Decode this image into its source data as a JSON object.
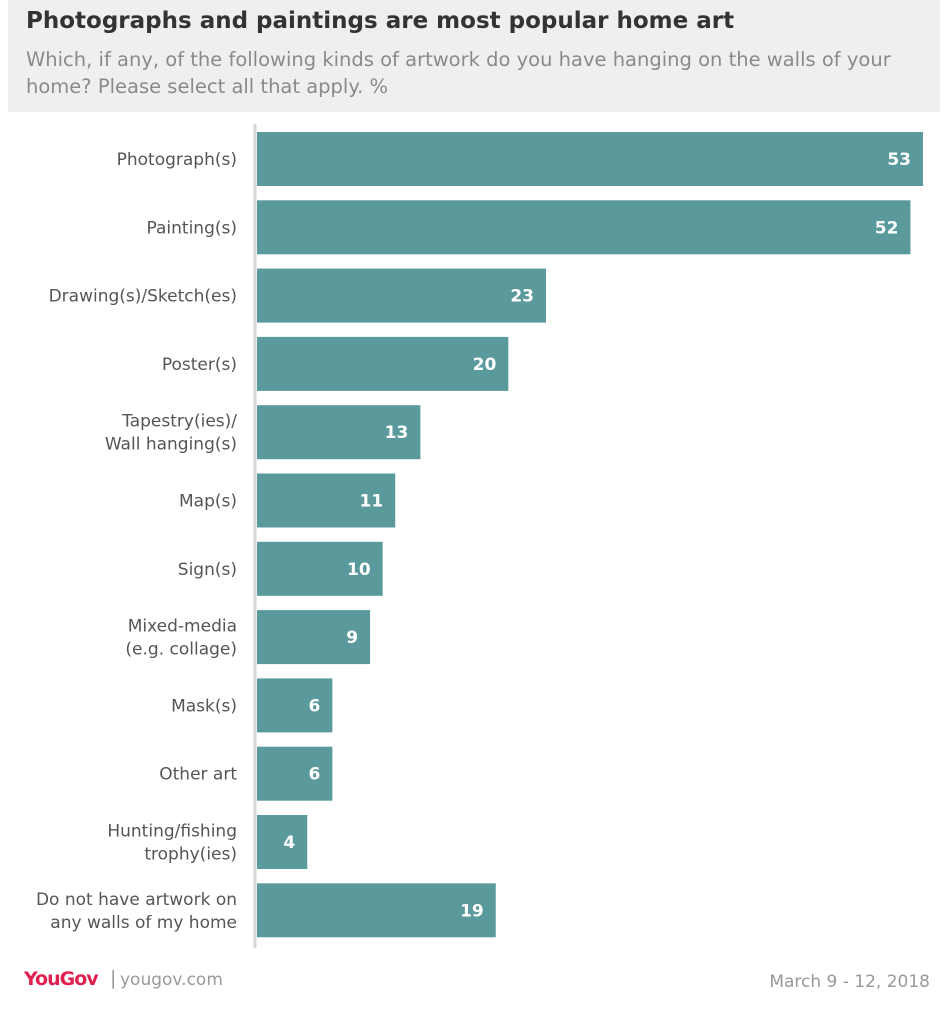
{
  "header": {
    "title": "Photographs and paintings are most popular home art",
    "subtitle": "Which, if any, of the following kinds of artwork do you have hanging on the walls of your home? Please select all that apply. %"
  },
  "colors": {
    "bar": "#5b9a9c",
    "header_bg": "#efefef",
    "brand": "#e0214f"
  },
  "chart_data": {
    "type": "bar",
    "orientation": "horizontal",
    "title": "Photographs and paintings are most popular home art",
    "subtitle": "Which, if any, of the following kinds of artwork do you have hanging on the walls of your home? Please select all that apply. %",
    "categories": [
      [
        "Photograph(s)"
      ],
      [
        "Painting(s)"
      ],
      [
        "Drawing(s)/Sketch(es)"
      ],
      [
        "Poster(s)"
      ],
      [
        "Tapestry(ies)/",
        "Wall hanging(s)"
      ],
      [
        "Map(s)"
      ],
      [
        "Sign(s)"
      ],
      [
        "Mixed-media",
        "(e.g. collage)"
      ],
      [
        "Mask(s)"
      ],
      [
        "Other art"
      ],
      [
        "Hunting/fishing",
        "trophy(ies)"
      ],
      [
        "Do not have artwork on",
        "any walls of my home"
      ]
    ],
    "values": [
      53,
      52,
      23,
      20,
      13,
      11,
      10,
      9,
      6,
      6,
      4,
      19
    ],
    "xlim": [
      0,
      53
    ],
    "grid": false,
    "data_labels": true
  },
  "footer": {
    "logo_part1": "You",
    "logo_part2": "Gov",
    "separator": "|",
    "url": "yougov.com",
    "date": "March 9 - 12, 2018"
  }
}
